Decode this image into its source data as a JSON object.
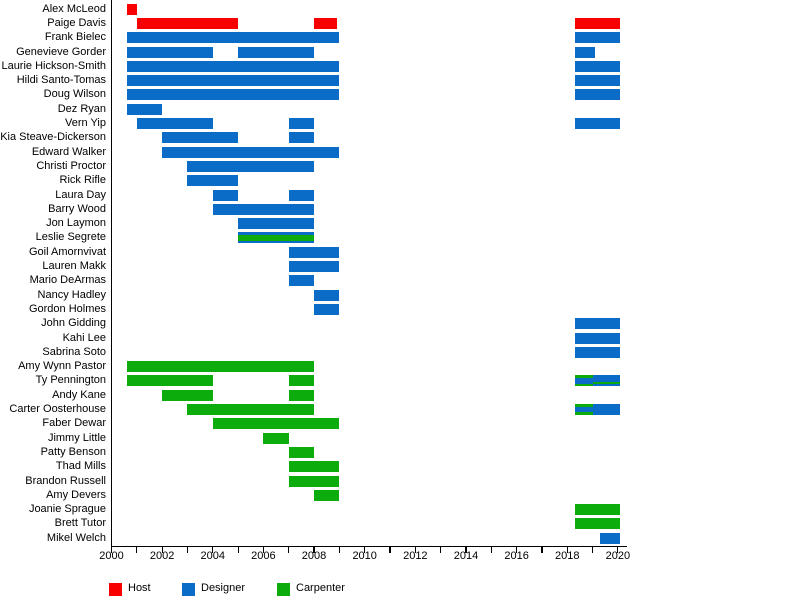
{
  "chart_data": {
    "type": "gantt-timeline",
    "title": "",
    "description": "Cast timeline chart: people on y-axis, years on x-axis, bars colored by role",
    "xlabel": "",
    "ylabel": "",
    "x_axis": {
      "min": 2000,
      "max": 2020.3,
      "minor_tick_interval": 1,
      "label_interval": 2,
      "tick_labels": [
        "2000",
        "2002",
        "2004",
        "2006",
        "2008",
        "2010",
        "2012",
        "2014",
        "2016",
        "2018",
        "2020"
      ]
    },
    "grid": false,
    "legend_position": "bottom-left",
    "legend": [
      {
        "role": "host",
        "label": "Host",
        "color": "#f80000"
      },
      {
        "role": "designer",
        "label": "Designer",
        "color": "#0b6cc7"
      },
      {
        "role": "carpenter",
        "label": "Carpenter",
        "color": "#0dac0d"
      }
    ],
    "colors": {
      "host": "#f80000",
      "designer": "#0b6cc7",
      "carpenter": "#0dac0d"
    },
    "people": [
      {
        "name": "Alex McLeod",
        "bars": [
          {
            "start": 2000.6,
            "end": 2001,
            "role": "host"
          }
        ]
      },
      {
        "name": "Paige Davis",
        "bars": [
          {
            "start": 2001,
            "end": 2005,
            "role": "host"
          },
          {
            "start": 2008,
            "end": 2008.9,
            "role": "host"
          },
          {
            "start": 2018.3,
            "end": 2020.1,
            "role": "host"
          }
        ]
      },
      {
        "name": "Frank Bielec",
        "bars": [
          {
            "start": 2000.6,
            "end": 2009,
            "role": "designer"
          },
          {
            "start": 2018.3,
            "end": 2020.1,
            "role": "designer"
          }
        ]
      },
      {
        "name": "Genevieve Gorder",
        "bars": [
          {
            "start": 2000.6,
            "end": 2004,
            "role": "designer"
          },
          {
            "start": 2005,
            "end": 2008,
            "role": "designer"
          },
          {
            "start": 2018.3,
            "end": 2019.1,
            "role": "designer"
          }
        ]
      },
      {
        "name": "Laurie Hickson-Smith",
        "bars": [
          {
            "start": 2000.6,
            "end": 2009,
            "role": "designer"
          },
          {
            "start": 2018.3,
            "end": 2020.1,
            "role": "designer"
          }
        ]
      },
      {
        "name": "Hildi Santo-Tomas",
        "bars": [
          {
            "start": 2000.6,
            "end": 2009,
            "role": "designer"
          },
          {
            "start": 2018.3,
            "end": 2020.1,
            "role": "designer"
          }
        ]
      },
      {
        "name": "Doug Wilson",
        "bars": [
          {
            "start": 2000.6,
            "end": 2009,
            "role": "designer"
          },
          {
            "start": 2018.3,
            "end": 2020.1,
            "role": "designer"
          }
        ]
      },
      {
        "name": "Dez Ryan",
        "bars": [
          {
            "start": 2000.6,
            "end": 2002,
            "role": "designer"
          }
        ]
      },
      {
        "name": "Vern Yip",
        "bars": [
          {
            "start": 2001,
            "end": 2004,
            "role": "designer"
          },
          {
            "start": 2007,
            "end": 2008,
            "role": "designer"
          },
          {
            "start": 2018.3,
            "end": 2020.1,
            "role": "designer"
          }
        ]
      },
      {
        "name": "Kia Steave-Dickerson",
        "bars": [
          {
            "start": 2002,
            "end": 2005,
            "role": "designer"
          },
          {
            "start": 2007,
            "end": 2008,
            "role": "designer"
          }
        ]
      },
      {
        "name": "Edward Walker",
        "bars": [
          {
            "start": 2002,
            "end": 2009,
            "role": "designer"
          }
        ]
      },
      {
        "name": "Christi Proctor",
        "bars": [
          {
            "start": 2003,
            "end": 2008,
            "role": "designer"
          }
        ]
      },
      {
        "name": "Rick Rifle",
        "bars": [
          {
            "start": 2003,
            "end": 2005,
            "role": "designer"
          }
        ]
      },
      {
        "name": "Laura Day",
        "bars": [
          {
            "start": 2004,
            "end": 2005,
            "role": "designer"
          },
          {
            "start": 2007,
            "end": 2008,
            "role": "designer"
          }
        ]
      },
      {
        "name": "Barry Wood",
        "bars": [
          {
            "start": 2004,
            "end": 2008,
            "role": "designer"
          }
        ]
      },
      {
        "name": "Jon Laymon",
        "bars": [
          {
            "start": 2005,
            "end": 2008,
            "role": "designer"
          }
        ]
      },
      {
        "name": "Leslie Segrete",
        "bars": [
          {
            "start": 2005,
            "end": 2008,
            "role": "designer",
            "overlay": "carpenter",
            "overlay_pos": "center"
          }
        ]
      },
      {
        "name": "Goil Amornvivat",
        "bars": [
          {
            "start": 2007,
            "end": 2009,
            "role": "designer"
          }
        ]
      },
      {
        "name": "Lauren Makk",
        "bars": [
          {
            "start": 2007,
            "end": 2009,
            "role": "designer"
          }
        ]
      },
      {
        "name": "Mario DeArmas",
        "bars": [
          {
            "start": 2007,
            "end": 2008,
            "role": "designer"
          }
        ]
      },
      {
        "name": "Nancy Hadley",
        "bars": [
          {
            "start": 2008,
            "end": 2009,
            "role": "designer"
          }
        ]
      },
      {
        "name": "Gordon Holmes",
        "bars": [
          {
            "start": 2008,
            "end": 2009,
            "role": "designer"
          }
        ]
      },
      {
        "name": "John Gidding",
        "bars": [
          {
            "start": 2018.3,
            "end": 2020.1,
            "role": "designer"
          }
        ]
      },
      {
        "name": "Kahi Lee",
        "bars": [
          {
            "start": 2018.3,
            "end": 2020.1,
            "role": "designer"
          }
        ]
      },
      {
        "name": "Sabrina Soto",
        "bars": [
          {
            "start": 2018.3,
            "end": 2020.1,
            "role": "designer"
          }
        ]
      },
      {
        "name": "Amy Wynn Pastor",
        "bars": [
          {
            "start": 2000.6,
            "end": 2008,
            "role": "carpenter"
          }
        ]
      },
      {
        "name": "Ty Pennington",
        "bars": [
          {
            "start": 2000.6,
            "end": 2004,
            "role": "carpenter"
          },
          {
            "start": 2007,
            "end": 2008,
            "role": "carpenter"
          },
          {
            "start": 2018.3,
            "end": 2019,
            "role": "carpenter",
            "overlay": "designer",
            "overlay_pos": "center"
          },
          {
            "start": 2019,
            "end": 2020.1,
            "role": "designer",
            "overlay": "carpenter",
            "overlay_pos": "lower"
          }
        ]
      },
      {
        "name": "Andy Kane",
        "bars": [
          {
            "start": 2002,
            "end": 2004,
            "role": "carpenter"
          },
          {
            "start": 2007,
            "end": 2008,
            "role": "carpenter"
          }
        ]
      },
      {
        "name": "Carter Oosterhouse",
        "bars": [
          {
            "start": 2003,
            "end": 2008,
            "role": "carpenter"
          },
          {
            "start": 2018.3,
            "end": 2019,
            "role": "carpenter",
            "overlay": "designer",
            "overlay_pos": "center"
          },
          {
            "start": 2019,
            "end": 2020.1,
            "role": "designer"
          }
        ]
      },
      {
        "name": "Faber Dewar",
        "bars": [
          {
            "start": 2004,
            "end": 2009,
            "role": "carpenter"
          }
        ]
      },
      {
        "name": "Jimmy Little",
        "bars": [
          {
            "start": 2006,
            "end": 2007,
            "role": "carpenter"
          }
        ]
      },
      {
        "name": "Patty Benson",
        "bars": [
          {
            "start": 2007,
            "end": 2008,
            "role": "carpenter"
          }
        ]
      },
      {
        "name": "Thad Mills",
        "bars": [
          {
            "start": 2007,
            "end": 2009,
            "role": "carpenter"
          }
        ]
      },
      {
        "name": "Brandon Russell",
        "bars": [
          {
            "start": 2007,
            "end": 2009,
            "role": "carpenter"
          }
        ]
      },
      {
        "name": "Amy Devers",
        "bars": [
          {
            "start": 2008,
            "end": 2009,
            "role": "carpenter"
          }
        ]
      },
      {
        "name": "Joanie Sprague",
        "bars": [
          {
            "start": 2018.3,
            "end": 2020.1,
            "role": "carpenter"
          }
        ]
      },
      {
        "name": "Brett Tutor",
        "bars": [
          {
            "start": 2018.3,
            "end": 2020.1,
            "role": "carpenter"
          }
        ]
      },
      {
        "name": "Mikel Welch",
        "bars": [
          {
            "start": 2019.3,
            "end": 2020.1,
            "role": "designer"
          }
        ]
      }
    ]
  }
}
